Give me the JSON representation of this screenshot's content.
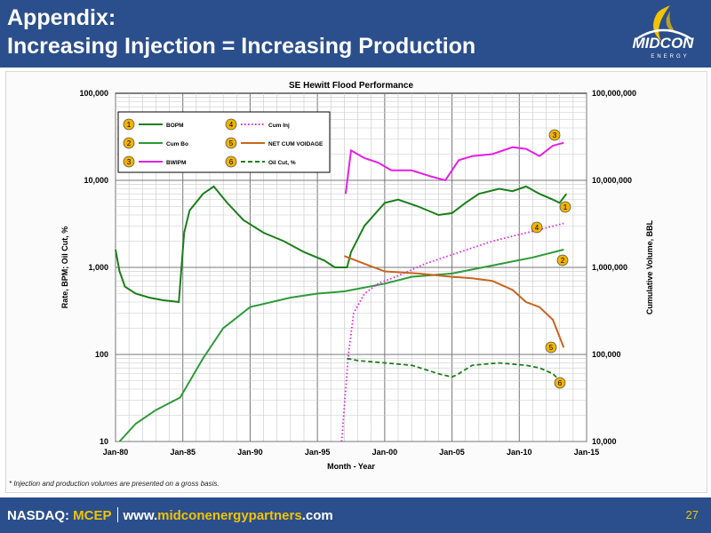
{
  "header": {
    "title_line1": "Appendix:",
    "title_line2": "Increasing Injection = Increasing Production",
    "logo_text": "MIDCON",
    "logo_subtext": "ENERGY"
  },
  "footnote": "* Injection and production volumes are presented on a gross basis.",
  "footer": {
    "exchange": "NASDAQ:",
    "ticker": "MCEP",
    "url_prefix": "www.",
    "url_brand": "midconenergypartners",
    "url_suffix": ".com",
    "page_number": "27"
  },
  "colors": {
    "header_bg": "#2b4f8c",
    "accent": "#f2c300",
    "green": "#1a7f1a",
    "light_green": "#2e9a3a",
    "magenta": "#e61ee6",
    "orange": "#c8641e",
    "marker_fill": "#f0b400"
  },
  "chart_data": {
    "type": "line",
    "title": "SE Hewitt Flood Performance",
    "xlabel": "Month - Year",
    "ylabel_left": "Rate, BPM; Oil Cut, %",
    "ylabel_right": "Cumulative Volume, BBL",
    "x_ticks": [
      "Jan-80",
      "Jan-85",
      "Jan-90",
      "Jan-95",
      "Jan-00",
      "Jan-05",
      "Jan-10",
      "Jan-15"
    ],
    "xlim": [
      1980,
      2015
    ],
    "left_axis": {
      "scale": "log",
      "ylim": [
        10,
        100000
      ],
      "ticks": [
        "10",
        "100",
        "1,000",
        "10,000",
        "100,000"
      ]
    },
    "right_axis": {
      "scale": "log",
      "ylim": [
        10000,
        100000000
      ],
      "ticks": [
        "10,000",
        "100,000",
        "1,000,000",
        "10,000,000",
        "100,000,000"
      ]
    },
    "grid": true,
    "legend_position": "top-left",
    "series": [
      {
        "marker": "1",
        "name": "BOPM",
        "axis": "left",
        "style": "solid",
        "color": "#1a7f1a",
        "points": [
          [
            1980,
            1600
          ],
          [
            1980.3,
            900
          ],
          [
            1980.7,
            600
          ],
          [
            1981.5,
            500
          ],
          [
            1982.5,
            450
          ],
          [
            1983.5,
            420
          ],
          [
            1984.7,
            400
          ],
          [
            1985.1,
            2500
          ],
          [
            1985.5,
            4500
          ],
          [
            1986.5,
            7000
          ],
          [
            1987.3,
            8500
          ],
          [
            1988.3,
            5500
          ],
          [
            1989.5,
            3500
          ],
          [
            1991,
            2500
          ],
          [
            1992.5,
            2000
          ],
          [
            1994,
            1500
          ],
          [
            1995.5,
            1200
          ],
          [
            1996.3,
            1000
          ],
          [
            1997.2,
            1000
          ],
          [
            1997.5,
            1500
          ],
          [
            1998.5,
            3000
          ],
          [
            2000,
            5500
          ],
          [
            2001,
            6000
          ],
          [
            2002.5,
            5000
          ],
          [
            2004,
            4000
          ],
          [
            2005,
            4200
          ],
          [
            2006,
            5500
          ],
          [
            2007,
            7000
          ],
          [
            2008.5,
            8000
          ],
          [
            2009.5,
            7500
          ],
          [
            2010.5,
            8500
          ],
          [
            2011.5,
            7000
          ],
          [
            2012.5,
            6000
          ],
          [
            2013,
            5500
          ],
          [
            2013.5,
            7000
          ]
        ]
      },
      {
        "marker": "2",
        "name": "Cum Bo",
        "axis": "right",
        "style": "solid",
        "color": "#2e9a3a",
        "points": [
          [
            1980.3,
            10000
          ],
          [
            1981.5,
            16000
          ],
          [
            1983,
            23000
          ],
          [
            1984.8,
            32000
          ],
          [
            1986.5,
            90000
          ],
          [
            1988,
            200000
          ],
          [
            1990,
            350000
          ],
          [
            1993,
            450000
          ],
          [
            1995,
            500000
          ],
          [
            1997,
            530000
          ],
          [
            2000,
            650000
          ],
          [
            2002,
            780000
          ],
          [
            2005,
            850000
          ],
          [
            2008,
            1050000
          ],
          [
            2011,
            1300000
          ],
          [
            2013.3,
            1600000
          ]
        ]
      },
      {
        "marker": "3",
        "name": "BWIPM",
        "axis": "left",
        "style": "solid",
        "color": "#e61ee6",
        "points": [
          [
            1997.1,
            7000
          ],
          [
            1997.5,
            22000
          ],
          [
            1998.5,
            18000
          ],
          [
            1999.5,
            16000
          ],
          [
            2000.5,
            13000
          ],
          [
            2002,
            13000
          ],
          [
            2003.5,
            11000
          ],
          [
            2004.5,
            10000
          ],
          [
            2005.5,
            17000
          ],
          [
            2006.5,
            19000
          ],
          [
            2008,
            20000
          ],
          [
            2009.5,
            24000
          ],
          [
            2010.5,
            23000
          ],
          [
            2011.5,
            19000
          ],
          [
            2012.5,
            25000
          ],
          [
            2013.3,
            27000
          ]
        ]
      },
      {
        "marker": "4",
        "name": "Cum Inj",
        "axis": "right",
        "style": "dotted",
        "color": "#e61ee6",
        "points": [
          [
            1996.8,
            10000
          ],
          [
            1997.3,
            100000
          ],
          [
            1997.7,
            300000
          ],
          [
            1998.5,
            500000
          ],
          [
            1999.5,
            650000
          ],
          [
            2001,
            800000
          ],
          [
            2003,
            1100000
          ],
          [
            2005,
            1400000
          ],
          [
            2008,
            2000000
          ],
          [
            2011,
            2600000
          ],
          [
            2013.3,
            3200000
          ]
        ]
      },
      {
        "marker": "5",
        "name": "NET CUM VOIDAGE",
        "axis": "right",
        "style": "solid",
        "color": "#c8641e",
        "points": [
          [
            1997,
            1350000
          ],
          [
            1998.5,
            1100000
          ],
          [
            2000,
            900000
          ],
          [
            2002.5,
            850000
          ],
          [
            2005,
            780000
          ],
          [
            2006.5,
            750000
          ],
          [
            2008,
            700000
          ],
          [
            2009.5,
            550000
          ],
          [
            2010.5,
            400000
          ],
          [
            2011.5,
            350000
          ],
          [
            2012.5,
            250000
          ],
          [
            2013.3,
            120000
          ]
        ]
      },
      {
        "marker": "6",
        "name": "Oil Cut, %",
        "axis": "left",
        "style": "dashed",
        "color": "#1a7f1a",
        "points": [
          [
            1997.2,
            90
          ],
          [
            1998,
            85
          ],
          [
            2000,
            80
          ],
          [
            2002,
            75
          ],
          [
            2004,
            60
          ],
          [
            2005,
            55
          ],
          [
            2005.5,
            60
          ],
          [
            2006.5,
            75
          ],
          [
            2008.5,
            80
          ],
          [
            2010.5,
            75
          ],
          [
            2011.5,
            70
          ],
          [
            2012.5,
            60
          ],
          [
            2013.3,
            45
          ]
        ]
      }
    ]
  }
}
